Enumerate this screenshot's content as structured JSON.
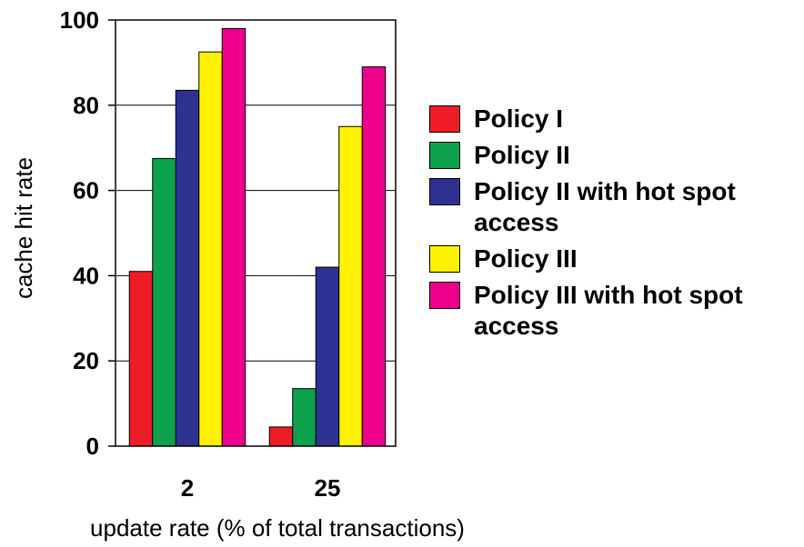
{
  "chart_data": {
    "type": "bar",
    "categories": [
      "2",
      "25"
    ],
    "series": [
      {
        "name": "Policy I",
        "color": "#ee1c25",
        "values": [
          41,
          4.5
        ]
      },
      {
        "name": "Policy II",
        "color": "#0da14b",
        "values": [
          67.5,
          13.5
        ]
      },
      {
        "name": "Policy II  with hot spot access",
        "color": "#2e3192",
        "values": [
          83.5,
          42
        ]
      },
      {
        "name": "Policy III",
        "color": "#fff200",
        "values": [
          92.5,
          75
        ]
      },
      {
        "name": "Policy III  with hot spot access",
        "color": "#ec008c",
        "values": [
          98,
          89
        ]
      }
    ],
    "yticks": [
      0,
      20,
      40,
      60,
      80,
      100
    ],
    "ylim": [
      0,
      100
    ],
    "xlabel": "update rate (% of total transactions)",
    "ylabel": "cache hit rate",
    "grid": true,
    "legend_position": "right"
  }
}
